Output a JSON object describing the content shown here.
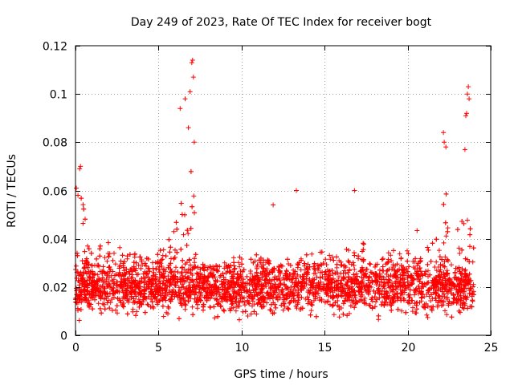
{
  "chart_data": {
    "type": "scatter",
    "title": "Day 249 of 2023, Rate Of TEC Index for receiver bogt",
    "xlabel": "GPS time / hours",
    "ylabel": "ROTI / TECUs",
    "xlim": [
      0,
      25
    ],
    "ylim": [
      0,
      0.12
    ],
    "xticks": [
      0,
      5,
      10,
      15,
      20,
      25
    ],
    "xtick_labels": [
      "0",
      "5",
      "10",
      "15",
      "20",
      "25"
    ],
    "yticks": [
      0,
      0.02,
      0.04,
      0.06,
      0.08,
      0.1,
      0.12
    ],
    "ytick_labels": [
      "0",
      "0.02",
      "0.04",
      "0.06",
      "0.08",
      "0.1",
      "0.12"
    ],
    "grid": true,
    "marker": "+",
    "series": [
      {
        "name": "ROTI",
        "color": "#ff0000",
        "x_range": [
          0,
          24
        ],
        "bulk_band": [
          0.005,
          0.035
        ],
        "envelope": [
          [
            0.0,
            0.045
          ],
          [
            0.3,
            0.06
          ],
          [
            1.0,
            0.035
          ],
          [
            2.0,
            0.04
          ],
          [
            3.0,
            0.035
          ],
          [
            4.0,
            0.035
          ],
          [
            5.0,
            0.035
          ],
          [
            6.0,
            0.045
          ],
          [
            6.5,
            0.06
          ],
          [
            7.0,
            0.075
          ],
          [
            7.5,
            0.04
          ],
          [
            8.0,
            0.03
          ],
          [
            9.0,
            0.03
          ],
          [
            10.0,
            0.035
          ],
          [
            11.0,
            0.035
          ],
          [
            12.0,
            0.03
          ],
          [
            13.0,
            0.03
          ],
          [
            14.0,
            0.035
          ],
          [
            15.0,
            0.035
          ],
          [
            16.0,
            0.035
          ],
          [
            17.0,
            0.04
          ],
          [
            18.0,
            0.035
          ],
          [
            19.0,
            0.035
          ],
          [
            20.0,
            0.04
          ],
          [
            20.5,
            0.045
          ],
          [
            21.0,
            0.035
          ],
          [
            22.0,
            0.05
          ],
          [
            22.3,
            0.06
          ],
          [
            23.0,
            0.045
          ],
          [
            23.5,
            0.05
          ],
          [
            24.0,
            0.04
          ]
        ],
        "notable_points": [
          [
            0.05,
            0.061
          ],
          [
            0.15,
            0.058
          ],
          [
            0.25,
            0.069
          ],
          [
            0.3,
            0.07
          ],
          [
            6.3,
            0.094
          ],
          [
            6.6,
            0.098
          ],
          [
            6.8,
            0.086
          ],
          [
            6.9,
            0.101
          ],
          [
            7.0,
            0.113
          ],
          [
            7.05,
            0.114
          ],
          [
            7.1,
            0.107
          ],
          [
            7.15,
            0.08
          ],
          [
            13.3,
            0.06
          ],
          [
            16.8,
            0.06
          ],
          [
            11.9,
            0.054
          ],
          [
            22.15,
            0.084
          ],
          [
            22.2,
            0.08
          ],
          [
            22.3,
            0.078
          ],
          [
            23.45,
            0.077
          ],
          [
            23.5,
            0.091
          ],
          [
            23.55,
            0.092
          ],
          [
            23.6,
            0.1
          ],
          [
            23.65,
            0.103
          ],
          [
            23.7,
            0.098
          ]
        ]
      }
    ]
  }
}
